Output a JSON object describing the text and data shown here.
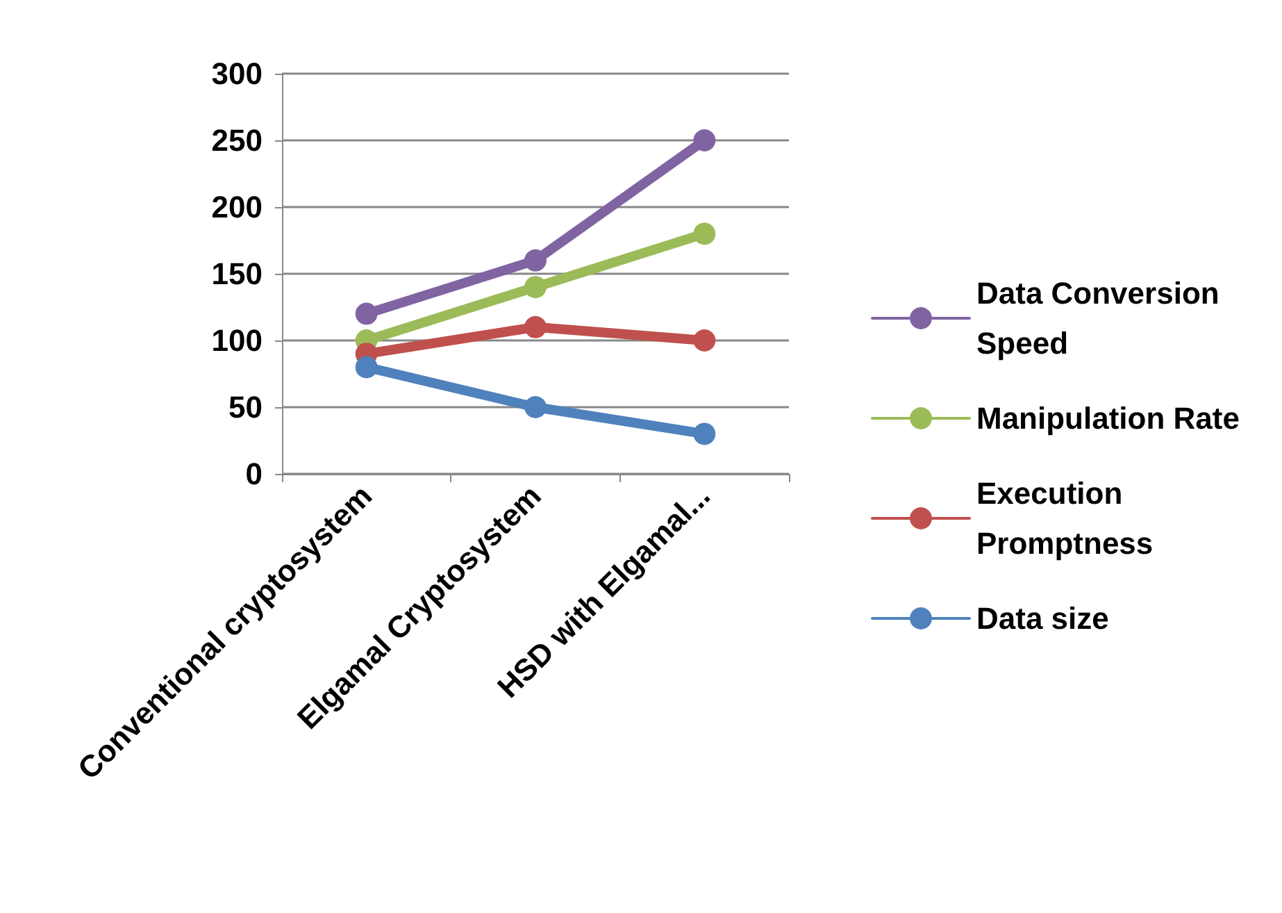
{
  "chart_data": {
    "type": "line",
    "categories": [
      "Conventional cryptosystem",
      "Elgamal Cryptosystem",
      "HSD with Elgamal..."
    ],
    "series": [
      {
        "name": "Data Conversion Speed",
        "color": "#8064a2",
        "values": [
          120,
          160,
          250
        ]
      },
      {
        "name": "Manipulation Rate",
        "color": "#9bbb59",
        "values": [
          100,
          140,
          180
        ]
      },
      {
        "name": "Execution Promptness",
        "color": "#c0504d",
        "values": [
          90,
          110,
          100
        ]
      },
      {
        "name": "Data size",
        "color": "#4f81bd",
        "values": [
          80,
          50,
          30
        ]
      }
    ],
    "ylim": [
      0,
      300
    ],
    "yticks": [
      0,
      50,
      100,
      150,
      200,
      250,
      300
    ],
    "grid": "y",
    "legend": "right",
    "marker": "circle",
    "line_style": "solid"
  }
}
